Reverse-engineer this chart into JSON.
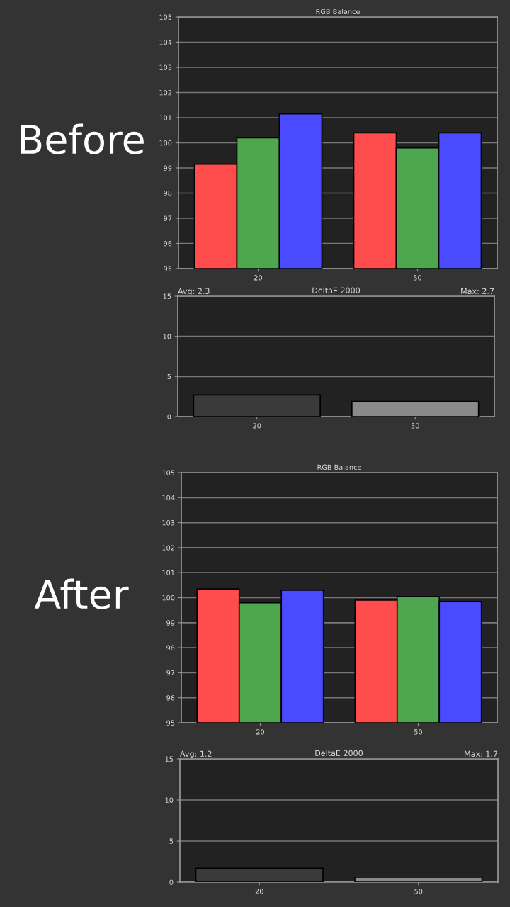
{
  "chart_data": [
    {
      "type": "bar",
      "title": "RGB Balance",
      "categories": [
        "20",
        "50"
      ],
      "annotations": [
        "Before"
      ],
      "series": [
        {
          "color": "#ff4c4c",
          "values": [
            99.15,
            100.4
          ]
        },
        {
          "color": "#4ea64e",
          "values": [
            100.2,
            99.8
          ]
        },
        {
          "color": "#4a4aff",
          "values": [
            101.15,
            100.4
          ]
        }
      ],
      "ylim": [
        95,
        105
      ],
      "yticks": [
        95,
        96,
        97,
        98,
        99,
        100,
        101,
        102,
        103,
        104,
        105
      ],
      "grid": "y"
    },
    {
      "type": "bar",
      "title": "DeltaE 2000",
      "categories": [
        "20",
        "50"
      ],
      "annotations": [
        "Avg: 2.3",
        "Max: 2.7"
      ],
      "values": [
        2.7,
        1.9
      ],
      "colors": [
        "#3a3a3a",
        "#8a8a8a"
      ],
      "ylim": [
        0,
        15
      ],
      "yticks": [
        0,
        5,
        10,
        15
      ],
      "grid": "y"
    },
    {
      "type": "bar",
      "title": "RGB Balance",
      "categories": [
        "20",
        "50"
      ],
      "annotations": [
        "After"
      ],
      "series": [
        {
          "color": "#ff4c4c",
          "values": [
            100.35,
            99.9
          ]
        },
        {
          "color": "#4ea64e",
          "values": [
            99.8,
            100.05
          ]
        },
        {
          "color": "#4a4aff",
          "values": [
            100.3,
            99.85
          ]
        }
      ],
      "ylim": [
        95,
        105
      ],
      "yticks": [
        95,
        96,
        97,
        98,
        99,
        100,
        101,
        102,
        103,
        104,
        105
      ],
      "grid": "y"
    },
    {
      "type": "bar",
      "title": "DeltaE 2000",
      "categories": [
        "20",
        "50"
      ],
      "annotations": [
        "Avg: 1.2",
        "Max: 1.7"
      ],
      "values": [
        1.7,
        0.6
      ],
      "colors": [
        "#3a3a3a",
        "#8a8a8a"
      ],
      "ylim": [
        0,
        15
      ],
      "yticks": [
        0,
        5,
        10,
        15
      ],
      "grid": "y"
    }
  ]
}
